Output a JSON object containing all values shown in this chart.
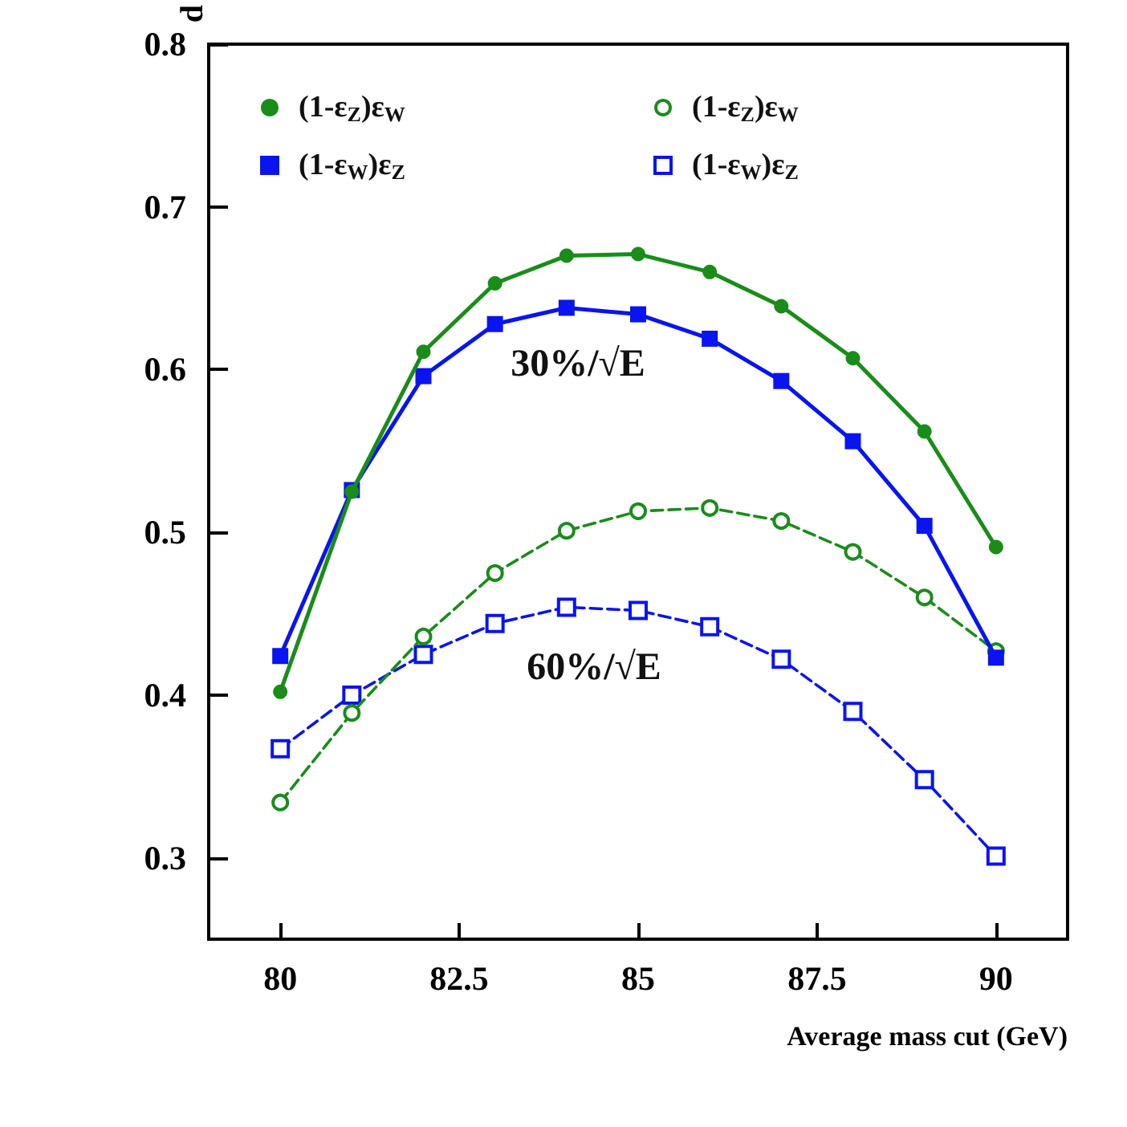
{
  "chart_data": {
    "type": "line",
    "xlabel": "Average mass cut (GeV)",
    "ylabel": "d",
    "x": [
      80,
      81,
      82,
      83,
      84,
      85,
      86,
      87,
      88,
      89,
      90
    ],
    "series": [
      {
        "name": "(1-ε$_{Z}$)ε$_{W}$",
        "color": "#1a8c1a",
        "marker": "circle",
        "line_style": "solid",
        "values": [
          0.402,
          0.525,
          0.611,
          0.653,
          0.67,
          0.671,
          0.66,
          0.639,
          0.607,
          0.562,
          0.491
        ]
      },
      {
        "name": "(1-ε$_{W}$)ε$_{Z}$",
        "color": "#0a14f0",
        "marker": "square",
        "line_style": "solid",
        "values": [
          0.424,
          0.526,
          0.596,
          0.628,
          0.638,
          0.634,
          0.619,
          0.593,
          0.556,
          0.504,
          0.423
        ]
      },
      {
        "name": "(1-ε$_{Z}$)ε$_{W}$",
        "color": "#1a8c1a",
        "marker": "circle",
        "line_style": "dashed",
        "values": [
          0.334,
          0.389,
          0.436,
          0.475,
          0.501,
          0.513,
          0.515,
          0.507,
          0.488,
          0.46,
          0.427
        ]
      },
      {
        "name": "(1-ε$_{W}$)ε$_{Z}$",
        "color": "#0a14f0",
        "marker": "square",
        "line_style": "dashed",
        "values": [
          0.367,
          0.4,
          0.425,
          0.444,
          0.454,
          0.452,
          0.442,
          0.422,
          0.39,
          0.348,
          0.301
        ]
      }
    ],
    "annotations": [
      "30%/√E",
      "60%/√E"
    ],
    "xlim": [
      79,
      91
    ],
    "xticks": [
      80,
      82.5,
      85,
      87.5,
      90
    ],
    "ylim": [
      0.25,
      0.8
    ],
    "yticks": [
      0.3,
      0.4,
      0.5,
      0.6,
      0.7,
      0.8
    ],
    "legend": "top",
    "grid": false
  }
}
